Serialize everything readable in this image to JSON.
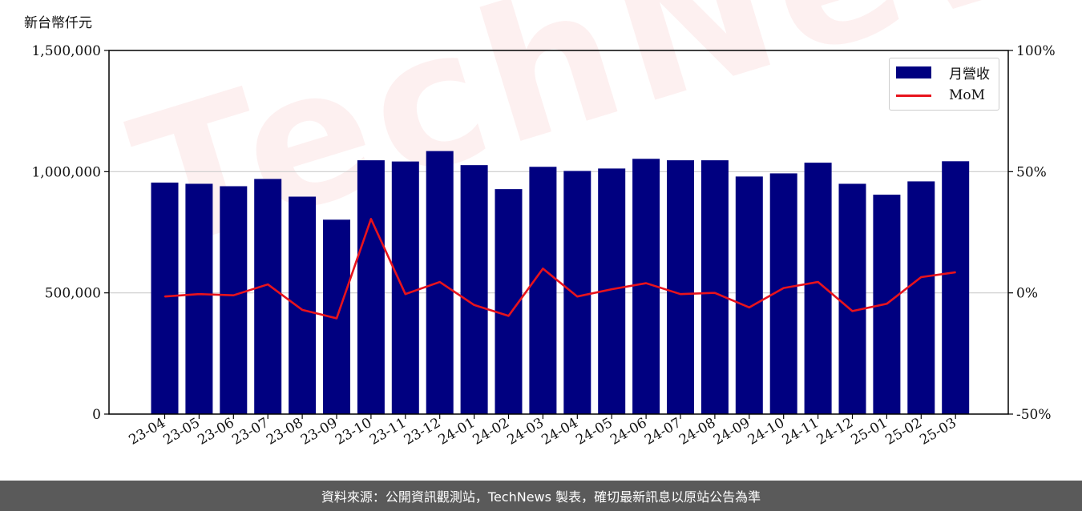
{
  "unit_label": "新台幣仟元",
  "watermark": "TechNews",
  "footer": "資料來源：公開資訊觀測站，TechNews 製表，確切最新訊息以原站公告為準",
  "colors": {
    "bar": "#000080",
    "line": "#e8131c",
    "grid": "#cccccc"
  },
  "chart_data": {
    "type": "bar",
    "categories": [
      "23-04",
      "23-05",
      "23-06",
      "23-07",
      "23-08",
      "23-09",
      "23-10",
      "23-11",
      "23-12",
      "24-01",
      "24-02",
      "24-03",
      "24-04",
      "24-05",
      "24-06",
      "24-07",
      "24-08",
      "24-09",
      "24-10",
      "24-11",
      "24-12",
      "25-01",
      "25-02",
      "25-03"
    ],
    "series": [
      {
        "name": "月營收",
        "axis": "left",
        "type": "bar",
        "values": [
          955000,
          950000,
          940000,
          970000,
          897000,
          802000,
          1047000,
          1042000,
          1085000,
          1027000,
          928000,
          1020000,
          1003000,
          1013000,
          1053000,
          1047000,
          1047000,
          980000,
          993000,
          1037000,
          950000,
          905000,
          960000,
          1043000
        ]
      },
      {
        "name": "MoM",
        "axis": "right",
        "type": "line",
        "values": [
          -1.5,
          -0.5,
          -1.0,
          3.5,
          -7.0,
          -10.5,
          30.5,
          -0.5,
          4.5,
          -5.0,
          -9.5,
          10.0,
          -1.5,
          1.5,
          4.0,
          -0.5,
          0.0,
          -6.0,
          2.0,
          4.5,
          -7.5,
          -4.5,
          6.5,
          8.5
        ]
      }
    ],
    "y_left": {
      "lim": [
        0,
        1500000
      ],
      "ticks": [
        "0",
        "500,000",
        "1,000,000",
        "1,500,000"
      ],
      "tick_values": [
        0,
        500000,
        1000000,
        1500000
      ]
    },
    "y_right": {
      "lim": [
        -50,
        100
      ],
      "ticks": [
        "-50%",
        "0%",
        "50%",
        "100%"
      ],
      "tick_values": [
        -50,
        0,
        50,
        100
      ]
    },
    "grid": "horizontal",
    "legend_position": "top-right"
  }
}
